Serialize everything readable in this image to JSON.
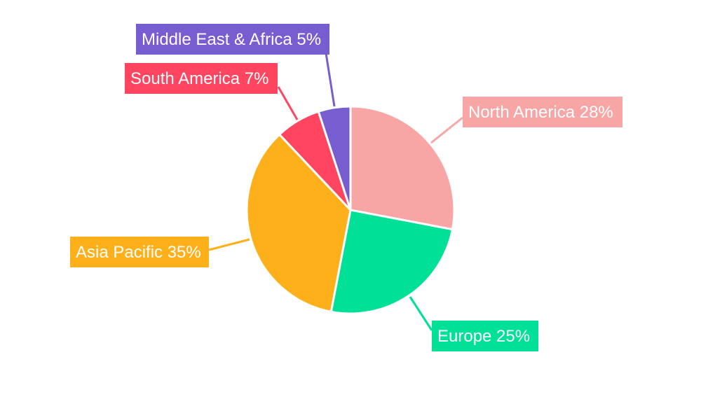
{
  "chart_data": {
    "type": "pie",
    "start_angle": "top",
    "direction": "clockwise",
    "slices": [
      {
        "label": "North America",
        "value": 28,
        "text": "North America 28%",
        "color": "#F8A5A5"
      },
      {
        "label": "Europe",
        "value": 25,
        "text": "Europe 25%",
        "color": "#00E096"
      },
      {
        "label": "Asia Pacific",
        "value": 35,
        "text": "Asia Pacific 35%",
        "color": "#FDB01A"
      },
      {
        "label": "South America",
        "value": 7,
        "text": "South America 7%",
        "color": "#FF4560"
      },
      {
        "label": "Middle East & Africa",
        "value": 5,
        "text": "Middle East & Africa 5%",
        "color": "#775DD0"
      }
    ],
    "legend": "none",
    "labels": "outside with leader lines"
  }
}
